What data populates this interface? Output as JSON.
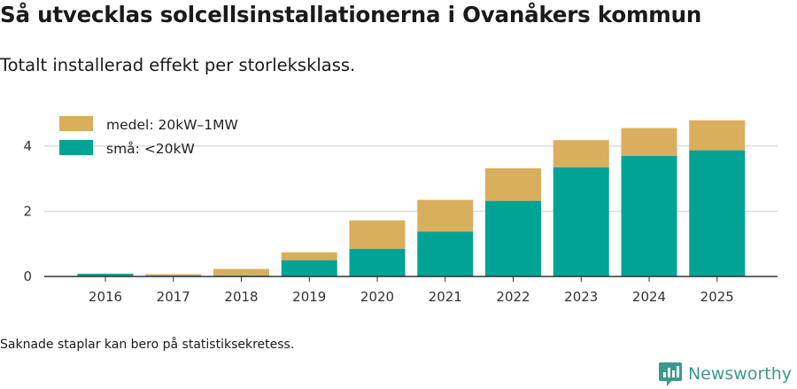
{
  "header": {
    "title": "Så utvecklas solcellsinstallationerna i Ovanåkers kommun",
    "subtitle": "Totalt installerad effekt per storleksklass."
  },
  "footer": {
    "note": "Saknade staplar kan bero på statistiksekretess.",
    "brand": "Newsworthy"
  },
  "colors": {
    "small": "#00a396",
    "medium": "#d9ae5c",
    "grid": "#dddddd",
    "axis": "#333333",
    "brand": "#3a9a8a"
  },
  "chart_data": {
    "type": "bar",
    "stacked": true,
    "title": "Så utvecklas solcellsinstallationerna i Ovanåkers kommun",
    "subtitle": "Totalt installerad effekt per storleksklass.",
    "xlabel": "",
    "ylabel": "",
    "categories": [
      "2016",
      "2017",
      "2018",
      "2019",
      "2020",
      "2021",
      "2022",
      "2023",
      "2024",
      "2025"
    ],
    "series": [
      {
        "name": "små: <20kW",
        "values": [
          0.08,
          0.03,
          0.03,
          0.5,
          0.85,
          1.38,
          2.32,
          3.35,
          3.7,
          3.87
        ]
      },
      {
        "name": "medel: 20kW–1MW",
        "values": [
          0.01,
          0.04,
          0.2,
          0.24,
          0.87,
          0.97,
          1.0,
          0.83,
          0.85,
          0.92
        ]
      }
    ],
    "yticks": [
      0,
      2,
      4
    ],
    "ylim": [
      0,
      5
    ],
    "grid": true,
    "legend_position": "top-left"
  }
}
